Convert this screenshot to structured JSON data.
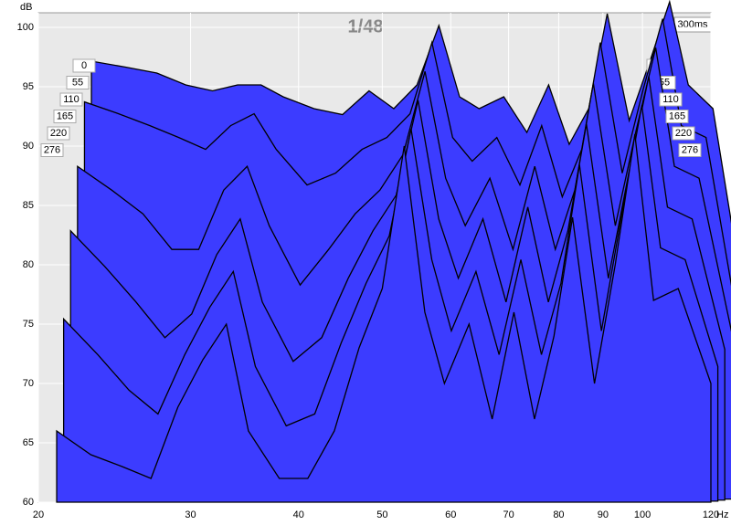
{
  "chart_data": {
    "type": "waterfall",
    "title": "1/48",
    "y_unit": "dB",
    "x_unit": "Hz",
    "back_label": "300ms",
    "log_x": true,
    "grid": true,
    "color": "#3c3cff",
    "xlim": [
      20,
      120
    ],
    "ylim": [
      60,
      100
    ],
    "xticks": [
      20,
      30,
      40,
      50,
      60,
      70,
      80,
      90,
      100,
      120
    ],
    "yticks": [
      60,
      65,
      70,
      75,
      80,
      85,
      90,
      95,
      100
    ],
    "x": [
      21,
      23,
      25,
      27,
      29,
      31,
      33,
      35,
      38,
      41,
      44,
      47,
      50,
      53,
      56,
      59,
      63,
      67,
      71,
      75,
      79,
      83,
      88,
      93,
      98,
      103,
      110,
      120
    ],
    "series": [
      {
        "name": "0",
        "values": [
          95,
          94.5,
          94,
          93,
          92.5,
          93,
          93,
          92,
          91,
          90.5,
          92.5,
          91,
          93,
          98,
          92,
          91,
          92,
          89,
          93,
          88,
          91,
          99,
          90,
          95,
          100,
          93,
          91,
          74
        ]
      },
      {
        "name": "55",
        "values": [
          92,
          91,
          90,
          89,
          88,
          90,
          91,
          88,
          85,
          86,
          88,
          89,
          91,
          97,
          89,
          87,
          89,
          85,
          90,
          84,
          88,
          97,
          86,
          93,
          99,
          90,
          89,
          73
        ]
      },
      {
        "name": "110",
        "values": [
          87,
          85,
          83,
          80,
          80,
          85,
          87,
          82,
          77,
          80,
          83,
          85,
          88,
          95,
          86,
          82,
          86,
          80,
          87,
          80,
          85,
          94,
          82,
          90,
          97,
          87,
          86,
          73
        ]
      },
      {
        "name": "165",
        "values": [
          82,
          79,
          76,
          73,
          75,
          80,
          83,
          76,
          71,
          73,
          78,
          82,
          85,
          93,
          83,
          78,
          83,
          76,
          84,
          76,
          82,
          91,
          78,
          87,
          95,
          84,
          83,
          72
        ]
      },
      {
        "name": "220",
        "values": [
          75,
          72,
          69,
          67,
          72,
          76,
          79,
          71,
          66,
          67,
          73,
          78,
          82,
          91,
          80,
          74,
          79,
          72,
          80,
          72,
          78,
          88,
          74,
          84,
          93,
          81,
          80,
          71
        ]
      },
      {
        "name": "276",
        "values": [
          66,
          64,
          63,
          62,
          68,
          72,
          75,
          66,
          62,
          62,
          66,
          73,
          78,
          90,
          76,
          70,
          75,
          67,
          76,
          67,
          74,
          84,
          70,
          80,
          91,
          77,
          78,
          70
        ]
      }
    ]
  }
}
